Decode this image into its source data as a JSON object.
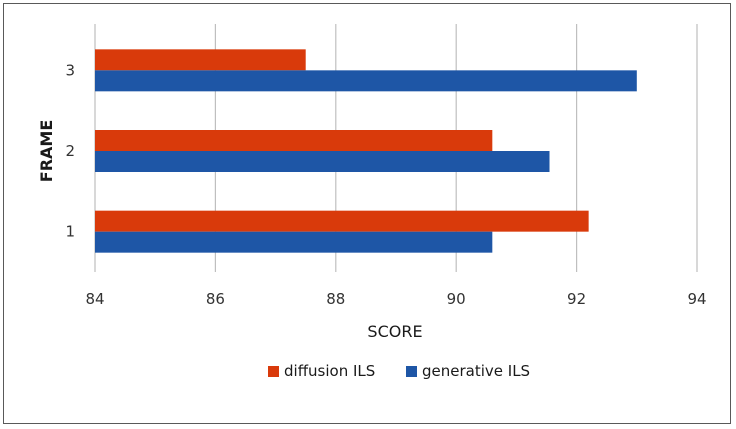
{
  "chart_data": {
    "type": "bar",
    "orientation": "horizontal",
    "categories": [
      "1",
      "2",
      "3"
    ],
    "series": [
      {
        "name": "diffusion ILS",
        "color": "#d93a0b",
        "values": [
          92.2,
          90.6,
          87.5
        ]
      },
      {
        "name": "generative ILS",
        "color": "#1e56a6",
        "values": [
          90.6,
          91.55,
          93.0
        ]
      }
    ],
    "xlabel": "SCORE",
    "ylabel": "FRAME",
    "xlim": [
      84,
      94
    ],
    "xticks": [
      "84",
      "86",
      "88",
      "90",
      "92",
      "94"
    ],
    "grid": "vertical",
    "legend_position": "bottom"
  }
}
